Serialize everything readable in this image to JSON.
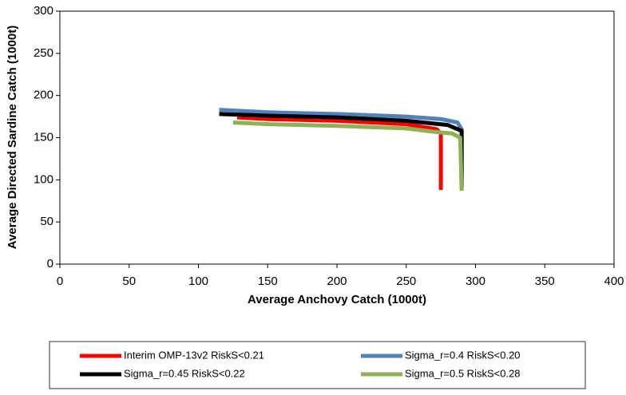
{
  "chart_data": {
    "type": "line",
    "x_label": "Average Anchovy Catch (1000t)",
    "y_label": "Average Directed Sardine Catch (1000t)",
    "xlim": [
      0,
      400
    ],
    "xticks": [
      0,
      50,
      100,
      150,
      200,
      250,
      300,
      350,
      400
    ],
    "ylim": [
      0,
      300
    ],
    "yticks": [
      0,
      50,
      100,
      150,
      200,
      250,
      300
    ],
    "series": [
      {
        "name": "Interim OMP-13v2 RiskS<0.21",
        "color": "#ff0000",
        "x": [
          128,
          150,
          200,
          250,
          272,
          275,
          275
        ],
        "values": [
          174,
          172,
          170,
          166,
          160,
          155,
          88
        ]
      },
      {
        "name": "Sigma_r=0.4 RiskS<0.20",
        "color": "#4f81bd",
        "x": [
          115,
          150,
          200,
          250,
          275,
          287,
          290,
          290
        ],
        "values": [
          183,
          180,
          178,
          175,
          172,
          168,
          160,
          88
        ]
      },
      {
        "name": "Sigma_r=0.45 RiskS<0.22",
        "color": "#000000",
        "x": [
          115,
          150,
          200,
          250,
          280,
          290,
          290
        ],
        "values": [
          178,
          176,
          174,
          170,
          165,
          158,
          90
        ]
      },
      {
        "name": "Sigma_r=0.5 RiskS<0.28",
        "color": "#8db255",
        "x": [
          125,
          150,
          200,
          250,
          270,
          283,
          289,
          290
        ],
        "values": [
          168,
          166,
          164,
          161,
          157,
          155,
          150,
          87
        ]
      }
    ]
  }
}
